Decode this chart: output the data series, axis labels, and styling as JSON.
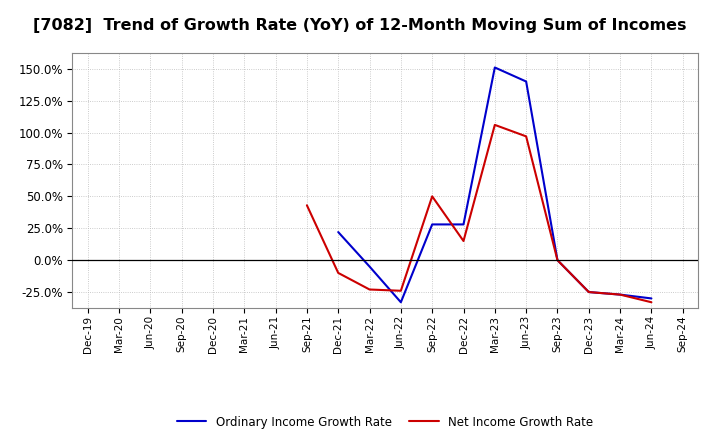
{
  "title": "[7082]  Trend of Growth Rate (YoY) of 12-Month Moving Sum of Incomes",
  "title_fontsize": 11.5,
  "background_color": "#ffffff",
  "plot_bg_color": "#ffffff",
  "grid_color": "#aaaaaa",
  "x_labels": [
    "Dec-19",
    "Mar-20",
    "Jun-20",
    "Sep-20",
    "Dec-20",
    "Mar-21",
    "Jun-21",
    "Sep-21",
    "Dec-21",
    "Mar-22",
    "Jun-22",
    "Sep-22",
    "Dec-22",
    "Mar-23",
    "Jun-23",
    "Sep-23",
    "Dec-23",
    "Mar-24",
    "Jun-24",
    "Sep-24"
  ],
  "ordinary_income": [
    null,
    null,
    null,
    null,
    null,
    null,
    null,
    null,
    22.0,
    -5.0,
    -33.0,
    28.0,
    28.0,
    151.0,
    140.0,
    0.0,
    -25.0,
    -27.0,
    -30.0,
    null
  ],
  "net_income": [
    null,
    null,
    null,
    null,
    null,
    null,
    null,
    43.0,
    -10.0,
    -23.0,
    -24.0,
    50.0,
    15.0,
    106.0,
    97.0,
    0.0,
    -25.0,
    -27.0,
    -33.0,
    null
  ],
  "ordinary_color": "#0000cc",
  "net_color": "#cc0000",
  "ylim": [
    -37.5,
    162.5
  ],
  "yticks": [
    -25.0,
    0.0,
    25.0,
    50.0,
    75.0,
    100.0,
    125.0,
    150.0
  ],
  "legend_ordinary": "Ordinary Income Growth Rate",
  "legend_net": "Net Income Growth Rate",
  "line_width": 1.5
}
